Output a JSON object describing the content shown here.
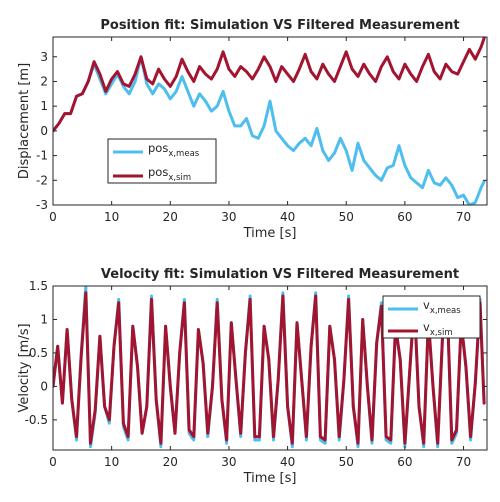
{
  "chart_data": [
    {
      "type": "line",
      "title": "Position fit: Simulation VS Filtered Measurement",
      "xlabel": "Time [s]",
      "ylabel": "Displacement [m]",
      "xlim": [
        0,
        74
      ],
      "ylim": [
        -3,
        3.8
      ],
      "xticks": [
        0,
        10,
        20,
        30,
        40,
        50,
        60,
        70
      ],
      "yticks": [
        -3,
        -2,
        -1,
        0,
        1,
        2,
        3
      ],
      "grid": false,
      "legend_position": "center-left",
      "series": [
        {
          "name": "pos",
          "sub": "x,meas",
          "color": "#4DBEEE",
          "x": [
            0,
            1,
            2,
            3,
            4,
            5,
            6,
            7,
            8,
            9,
            10,
            11,
            12,
            13,
            14,
            15,
            16,
            17,
            18,
            19,
            20,
            21,
            22,
            23,
            24,
            25,
            26,
            27,
            28,
            29,
            30,
            31,
            32,
            33,
            34,
            35,
            36,
            37,
            38,
            39,
            40,
            41,
            42,
            43,
            44,
            45,
            46,
            47,
            48,
            49,
            50,
            51,
            52,
            53,
            54,
            55,
            56,
            57,
            58,
            59,
            60,
            61,
            62,
            63,
            64,
            65,
            66,
            67,
            68,
            69,
            70,
            71,
            72,
            73,
            73.5
          ],
          "y": [
            0,
            0.3,
            0.7,
            0.7,
            1.4,
            1.5,
            2.0,
            2.7,
            2.1,
            1.5,
            1.9,
            2.3,
            1.8,
            1.5,
            2.0,
            3.0,
            1.9,
            1.5,
            1.9,
            1.7,
            1.3,
            1.6,
            2.2,
            1.6,
            1.0,
            1.5,
            1.2,
            0.8,
            1.0,
            1.6,
            0.8,
            0.2,
            0.2,
            0.5,
            -0.2,
            -0.3,
            0.2,
            1.2,
            0.0,
            -0.3,
            -0.6,
            -0.8,
            -0.5,
            -0.3,
            -0.6,
            0.1,
            -0.8,
            -1.2,
            -0.9,
            -0.3,
            -0.8,
            -1.6,
            -0.5,
            -1.2,
            -1.5,
            -1.8,
            -2.0,
            -1.5,
            -1.4,
            -0.6,
            -1.4,
            -1.9,
            -2.1,
            -2.3,
            -1.6,
            -2.1,
            -2.2,
            -1.9,
            -2.2,
            -2.7,
            -2.6,
            -3.0,
            -2.9,
            -2.3,
            -2.05
          ]
        },
        {
          "name": "pos",
          "sub": "x,sim",
          "color": "#A2142F",
          "x": [
            0,
            1,
            2,
            3,
            4,
            5,
            6,
            7,
            8,
            9,
            10,
            11,
            12,
            13,
            14,
            15,
            16,
            17,
            18,
            19,
            20,
            21,
            22,
            23,
            24,
            25,
            26,
            27,
            28,
            29,
            30,
            31,
            32,
            33,
            34,
            35,
            36,
            37,
            38,
            39,
            40,
            41,
            42,
            43,
            44,
            45,
            46,
            47,
            48,
            49,
            50,
            51,
            52,
            53,
            54,
            55,
            56,
            57,
            58,
            59,
            60,
            61,
            62,
            63,
            64,
            65,
            66,
            67,
            68,
            69,
            70,
            71,
            72,
            73,
            73.5
          ],
          "y": [
            0,
            0.3,
            0.7,
            0.7,
            1.4,
            1.5,
            2.0,
            2.8,
            2.3,
            1.6,
            2.1,
            2.4,
            1.9,
            1.8,
            2.3,
            3.0,
            2.1,
            1.9,
            2.5,
            2.1,
            1.8,
            2.2,
            2.9,
            2.4,
            2.0,
            2.6,
            2.3,
            2.1,
            2.5,
            3.2,
            2.5,
            2.2,
            2.6,
            2.4,
            2.1,
            2.5,
            3.0,
            2.6,
            2.0,
            2.6,
            2.3,
            2.0,
            2.5,
            3.1,
            2.4,
            2.1,
            2.7,
            2.3,
            2.0,
            2.6,
            3.2,
            2.5,
            2.2,
            2.7,
            2.3,
            2.0,
            2.6,
            3.0,
            2.4,
            2.1,
            2.7,
            2.3,
            2.0,
            2.6,
            3.1,
            2.4,
            2.1,
            2.7,
            2.4,
            2.3,
            2.8,
            3.3,
            2.9,
            3.4,
            3.75
          ]
        }
      ]
    },
    {
      "type": "line",
      "title": "Velocity fit: Simulation VS Filtered Measurement",
      "xlabel": "Time [s]",
      "ylabel": "Velocity [m/s]",
      "xlim": [
        0,
        74
      ],
      "ylim": [
        -0.95,
        1.5
      ],
      "xticks": [
        0,
        10,
        20,
        30,
        40,
        50,
        60,
        70
      ],
      "yticks": [
        -0.5,
        0,
        0.5,
        1,
        1.5
      ],
      "grid": false,
      "legend_position": "top-right",
      "series": [
        {
          "name": "v",
          "sub": "x,meas",
          "color": "#4DBEEE",
          "x": [
            0,
            0.8,
            1.6,
            2.4,
            3.2,
            4.0,
            4.8,
            5.6,
            6.4,
            7.2,
            8.0,
            8.8,
            9.6,
            10.4,
            11.2,
            12.0,
            12.8,
            13.6,
            14.4,
            15.2,
            16.0,
            16.8,
            17.6,
            18.4,
            19.2,
            20.0,
            20.8,
            21.6,
            22.4,
            23.2,
            24.0,
            24.8,
            25.6,
            26.4,
            27.2,
            28.0,
            28.8,
            29.6,
            30.4,
            31.2,
            32.0,
            32.8,
            33.6,
            34.4,
            35.2,
            36.0,
            36.8,
            37.6,
            38.4,
            39.2,
            40.0,
            40.8,
            41.6,
            42.4,
            43.2,
            44.0,
            44.8,
            45.6,
            46.4,
            47.2,
            48.0,
            48.8,
            49.6,
            50.4,
            51.2,
            52.0,
            52.8,
            53.6,
            54.4,
            55.2,
            56.0,
            56.8,
            57.6,
            58.4,
            59.2,
            60.0,
            60.8,
            61.6,
            62.4,
            63.2,
            64.0,
            64.8,
            65.6,
            66.4,
            67.2,
            68.0,
            68.8,
            69.6,
            70.4,
            71.2,
            72.0,
            72.8,
            73.5
          ],
          "y": [
            0.0,
            0.6,
            -0.25,
            0.85,
            -0.2,
            -0.8,
            0.5,
            1.5,
            -0.9,
            -0.4,
            0.75,
            -0.3,
            -0.55,
            0.6,
            1.3,
            -0.6,
            -0.8,
            0.9,
            0.3,
            -0.7,
            -0.3,
            1.35,
            -0.2,
            -0.9,
            0.9,
            0.0,
            -0.7,
            0.5,
            1.3,
            -0.7,
            -0.8,
            0.85,
            0.35,
            -0.75,
            0.0,
            1.3,
            -0.2,
            -0.85,
            0.95,
            0.1,
            -0.75,
            0.5,
            1.35,
            -0.8,
            -0.8,
            0.9,
            0.4,
            -0.8,
            0.1,
            1.4,
            -0.3,
            -0.9,
            0.95,
            0.1,
            -0.8,
            0.6,
            1.4,
            -0.8,
            -0.85,
            0.9,
            0.4,
            -0.8,
            0.1,
            1.35,
            -0.3,
            -0.9,
            1.0,
            0.0,
            -0.85,
            0.65,
            1.25,
            -0.8,
            -0.85,
            0.9,
            0.4,
            -0.9,
            0.2,
            1.3,
            -0.3,
            -0.9,
            1.0,
            0.0,
            -0.9,
            0.7,
            1.3,
            -0.85,
            -0.7,
            0.95,
            0.3,
            -0.8,
            0.05,
            1.3,
            -0.25
          ]
        },
        {
          "name": "v",
          "sub": "x,sim",
          "color": "#A2142F",
          "x": [
            0,
            0.8,
            1.6,
            2.4,
            3.2,
            4.0,
            4.8,
            5.6,
            6.4,
            7.2,
            8.0,
            8.8,
            9.6,
            10.4,
            11.2,
            12.0,
            12.8,
            13.6,
            14.4,
            15.2,
            16.0,
            16.8,
            17.6,
            18.4,
            19.2,
            20.0,
            20.8,
            21.6,
            22.4,
            23.2,
            24.0,
            24.8,
            25.6,
            26.4,
            27.2,
            28.0,
            28.8,
            29.6,
            30.4,
            31.2,
            32.0,
            32.8,
            33.6,
            34.4,
            35.2,
            36.0,
            36.8,
            37.6,
            38.4,
            39.2,
            40.0,
            40.8,
            41.6,
            42.4,
            43.2,
            44.0,
            44.8,
            45.6,
            46.4,
            47.2,
            48.0,
            48.8,
            49.6,
            50.4,
            51.2,
            52.0,
            52.8,
            53.6,
            54.4,
            55.2,
            56.0,
            56.8,
            57.6,
            58.4,
            59.2,
            60.0,
            60.8,
            61.6,
            62.4,
            63.2,
            64.0,
            64.8,
            65.6,
            66.4,
            67.2,
            68.0,
            68.8,
            69.6,
            70.4,
            71.2,
            72.0,
            72.8,
            73.5
          ],
          "y": [
            0.0,
            0.6,
            -0.25,
            0.85,
            -0.2,
            -0.75,
            0.45,
            1.4,
            -0.85,
            -0.35,
            0.75,
            -0.3,
            -0.5,
            0.6,
            1.25,
            -0.55,
            -0.75,
            0.9,
            0.3,
            -0.7,
            -0.3,
            1.3,
            -0.2,
            -0.85,
            0.9,
            0.0,
            -0.7,
            0.5,
            1.25,
            -0.65,
            -0.75,
            0.85,
            0.35,
            -0.7,
            0.0,
            1.25,
            -0.2,
            -0.8,
            0.95,
            0.1,
            -0.7,
            0.5,
            1.3,
            -0.75,
            -0.75,
            0.9,
            0.4,
            -0.75,
            0.1,
            1.35,
            -0.3,
            -0.85,
            0.95,
            0.1,
            -0.75,
            0.6,
            1.35,
            -0.75,
            -0.8,
            0.9,
            0.4,
            -0.75,
            0.1,
            1.3,
            -0.3,
            -0.85,
            1.0,
            0.0,
            -0.8,
            0.65,
            1.2,
            -0.75,
            -0.8,
            0.9,
            0.4,
            -0.85,
            0.2,
            1.25,
            -0.3,
            -0.85,
            1.0,
            0.0,
            -0.85,
            0.7,
            1.25,
            -0.8,
            -0.65,
            0.95,
            0.3,
            -0.75,
            0.05,
            1.25,
            -0.25
          ]
        }
      ]
    }
  ]
}
